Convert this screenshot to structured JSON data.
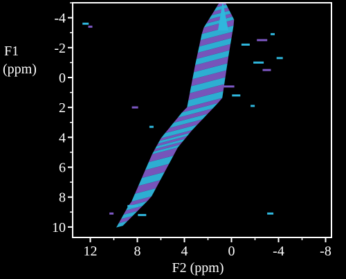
{
  "chart_data": {
    "type": "heatmap",
    "title": "",
    "subtitle": "",
    "xlabel": "F2 (ppm)",
    "ylabel_line1": "F1",
    "ylabel_line2": "(ppm)",
    "xlim": [
      13.5,
      -8.5
    ],
    "ylim": [
      -5,
      10.7
    ],
    "x_ticks": [
      12,
      8,
      4,
      0,
      -4,
      -8
    ],
    "x_tick_labels": [
      "12",
      "8",
      "4",
      "0",
      "-4",
      "-8"
    ],
    "y_ticks": [
      -4,
      -2,
      0,
      2,
      4,
      6,
      8,
      10
    ],
    "y_tick_labels": [
      "-4",
      "-2",
      "0",
      "2",
      "4",
      "6",
      "8",
      "10"
    ],
    "grid": false,
    "legend": "none",
    "colors": {
      "background": "#000000",
      "frame": "#ffffff",
      "band_a": "#2fb7dd",
      "band_b": "#7d58c4"
    },
    "diagonal_ridge": [
      {
        "x": 9.5,
        "y": 10.0
      },
      {
        "x": 7.6,
        "y": 8.2
      },
      {
        "x": 5.6,
        "y": 5.0
      },
      {
        "x": 4.6,
        "y": 3.9
      },
      {
        "x": 2.2,
        "y": 1.8
      },
      {
        "x": 1.6,
        "y": -1.0
      },
      {
        "x": 1.0,
        "y": -3.5
      },
      {
        "x": 0.8,
        "y": -5.0
      }
    ],
    "cross_peaks": [
      {
        "x": 12.0,
        "y": -3.4
      },
      {
        "x": 12.4,
        "y": -3.6
      },
      {
        "x": -1.2,
        "y": -2.2
      },
      {
        "x": -2.6,
        "y": -2.5
      },
      {
        "x": -3.5,
        "y": -2.9
      },
      {
        "x": -4.1,
        "y": -1.3
      },
      {
        "x": -3.0,
        "y": -0.5
      },
      {
        "x": -2.3,
        "y": -1.0
      },
      {
        "x": 6.8,
        "y": 3.3
      },
      {
        "x": 8.2,
        "y": 2.0
      },
      {
        "x": 7.6,
        "y": 9.2
      },
      {
        "x": 8.4,
        "y": 8.6
      },
      {
        "x": 10.2,
        "y": 9.1
      },
      {
        "x": -3.3,
        "y": 9.1
      },
      {
        "x": -0.4,
        "y": 1.2
      },
      {
        "x": 0.2,
        "y": 0.6
      },
      {
        "x": -1.8,
        "y": 1.9
      }
    ]
  }
}
